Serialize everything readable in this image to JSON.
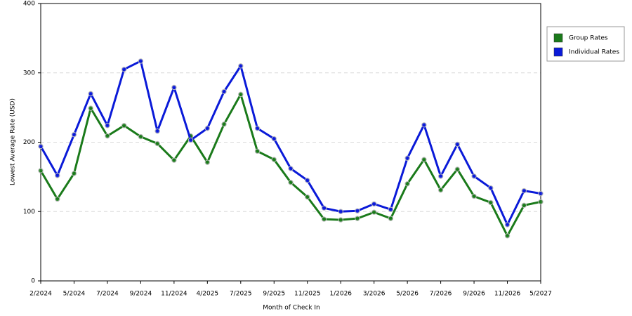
{
  "chart_data": {
    "type": "line",
    "x_label": "Month of Check In",
    "y_label": "Lowest Average Rate (USD)",
    "categories": [
      "2/2024",
      null,
      "5/2024",
      null,
      "7/2024",
      null,
      "9/2024",
      null,
      "11/2024",
      null,
      "4/2025",
      null,
      "7/2025",
      null,
      "9/2025",
      null,
      "11/2025",
      null,
      "1/2026",
      null,
      "3/2026",
      null,
      "5/2026",
      null,
      "7/2026",
      null,
      "9/2026",
      null,
      "11/2026",
      null,
      "5/2027"
    ],
    "series": [
      {
        "name": "Group Rates",
        "color": "#1a7a1a",
        "values": [
          159,
          118,
          155,
          249,
          209,
          224,
          208,
          198,
          174,
          209,
          171,
          226,
          269,
          187,
          175,
          142,
          121,
          89,
          88,
          90,
          99,
          90,
          140,
          175,
          131,
          161,
          122,
          113,
          65,
          109,
          114
        ]
      },
      {
        "name": "Individual Rates",
        "color": "#0a1ad8",
        "values": [
          194,
          152,
          211,
          270,
          224,
          305,
          317,
          216,
          279,
          203,
          220,
          273,
          310,
          220,
          205,
          162,
          145,
          105,
          100,
          101,
          111,
          103,
          177,
          225,
          151,
          197,
          151,
          134,
          81,
          130,
          126
        ]
      }
    ],
    "ylim": [
      0,
      400
    ],
    "yticks": [
      0,
      100,
      200,
      300,
      400
    ],
    "grid": true,
    "legend": "right"
  }
}
